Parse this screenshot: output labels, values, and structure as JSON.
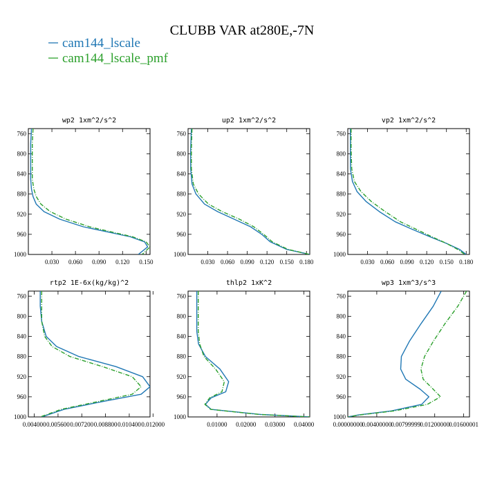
{
  "figure": {
    "title": "CLUBB VAR at280E,-7N"
  },
  "legend": [
    {
      "label": "cam144_lscale",
      "color": "#1f77b4",
      "dash": "solid"
    },
    {
      "label": "cam144_lscale_pmf",
      "color": "#2ca02c",
      "dash": "dashdot"
    }
  ],
  "chart_data": [
    {
      "type": "line",
      "title": "wp2  1xm^2/s^2",
      "xlim": [
        0,
        0.155
      ],
      "ylim": [
        1000,
        750
      ],
      "xticks": [
        0.03,
        0.06,
        0.09,
        0.12,
        0.15
      ],
      "xtick_labels": [
        "0.030",
        "0.060",
        "0.090",
        "0.120",
        "0.150"
      ],
      "yticks": [
        760,
        800,
        840,
        880,
        920,
        960,
        1000
      ],
      "series": [
        {
          "name": "cam144_lscale",
          "color": "#1f77b4",
          "dash": "solid",
          "x": [
            0.004,
            0.003,
            0.003,
            0.003,
            0.004,
            0.006,
            0.01,
            0.02,
            0.04,
            0.07,
            0.1,
            0.13,
            0.148,
            0.152,
            0.14
          ],
          "y": [
            750,
            780,
            820,
            850,
            870,
            885,
            900,
            915,
            930,
            945,
            955,
            965,
            975,
            985,
            1000
          ]
        },
        {
          "name": "cam144_lscale_pmf",
          "color": "#2ca02c",
          "dash": "dashdot",
          "x": [
            0.006,
            0.005,
            0.005,
            0.005,
            0.007,
            0.01,
            0.016,
            0.028,
            0.048,
            0.078,
            0.105,
            0.133,
            0.15,
            0.155,
            0.145
          ],
          "y": [
            750,
            780,
            820,
            850,
            870,
            885,
            900,
            915,
            930,
            945,
            955,
            965,
            975,
            985,
            1000
          ]
        }
      ]
    },
    {
      "type": "line",
      "title": "up2  1xm^2/s^2",
      "xlim": [
        0,
        0.185
      ],
      "ylim": [
        1000,
        750
      ],
      "xticks": [
        0.03,
        0.06,
        0.09,
        0.12,
        0.15,
        0.18
      ],
      "xtick_labels": [
        "0.030",
        "0.060",
        "0.090",
        "0.120",
        "0.150",
        "0.180"
      ],
      "yticks": [
        760,
        800,
        840,
        880,
        920,
        960,
        1000
      ],
      "series": [
        {
          "name": "cam144_lscale",
          "color": "#1f77b4",
          "dash": "solid",
          "x": [
            0.005,
            0.004,
            0.004,
            0.006,
            0.012,
            0.025,
            0.045,
            0.07,
            0.095,
            0.112,
            0.125,
            0.15,
            0.185
          ],
          "y": [
            750,
            790,
            830,
            860,
            880,
            900,
            915,
            930,
            945,
            960,
            975,
            990,
            1000
          ]
        },
        {
          "name": "cam144_lscale_pmf",
          "color": "#2ca02c",
          "dash": "dashdot",
          "x": [
            0.006,
            0.005,
            0.005,
            0.008,
            0.016,
            0.031,
            0.052,
            0.078,
            0.1,
            0.115,
            0.128,
            0.152,
            0.185
          ],
          "y": [
            750,
            790,
            830,
            860,
            880,
            900,
            915,
            930,
            945,
            960,
            975,
            990,
            1000
          ]
        }
      ]
    },
    {
      "type": "line",
      "title": "vp2  1xm^2/s^2",
      "xlim": [
        0,
        0.185
      ],
      "ylim": [
        1000,
        750
      ],
      "xticks": [
        0.03,
        0.06,
        0.09,
        0.12,
        0.15,
        0.18
      ],
      "xtick_labels": [
        "0.030",
        "0.060",
        "0.090",
        "0.120",
        "0.150",
        "0.180"
      ],
      "yticks": [
        760,
        800,
        840,
        880,
        920,
        960,
        1000
      ],
      "series": [
        {
          "name": "cam144_lscale",
          "color": "#1f77b4",
          "dash": "solid",
          "x": [
            0.004,
            0.004,
            0.004,
            0.007,
            0.014,
            0.028,
            0.048,
            0.072,
            0.098,
            0.125,
            0.15,
            0.17,
            0.18
          ],
          "y": [
            750,
            790,
            830,
            855,
            875,
            895,
            915,
            935,
            950,
            965,
            978,
            990,
            1000
          ]
        },
        {
          "name": "cam144_lscale_pmf",
          "color": "#2ca02c",
          "dash": "dashdot",
          "x": [
            0.005,
            0.005,
            0.006,
            0.01,
            0.02,
            0.036,
            0.057,
            0.08,
            0.104,
            0.128,
            0.15,
            0.167,
            0.178
          ],
          "y": [
            750,
            790,
            830,
            855,
            875,
            895,
            915,
            935,
            950,
            965,
            978,
            990,
            1000
          ]
        }
      ]
    },
    {
      "type": "line",
      "title": "rtp2  1E-6x(kg/kg)^2",
      "xlim": [
        0.0036,
        0.0118
      ],
      "ylim": [
        1000,
        750
      ],
      "xticks": [
        0.004,
        0.0056,
        0.0072,
        0.0088,
        0.0104,
        0.012
      ],
      "xtick_labels": [
        "0.004000",
        "0.005600",
        "0.007200",
        "0.008800",
        "0.010400",
        "0.012000"
      ],
      "yticks": [
        760,
        800,
        840,
        880,
        920,
        960,
        1000
      ],
      "series": [
        {
          "name": "cam144_lscale",
          "color": "#1f77b4",
          "dash": "solid",
          "x": [
            0.0044,
            0.0044,
            0.0045,
            0.0048,
            0.0055,
            0.007,
            0.0095,
            0.0113,
            0.0118,
            0.0112,
            0.0085,
            0.006,
            0.0045
          ],
          "y": [
            750,
            780,
            810,
            840,
            860,
            880,
            900,
            920,
            940,
            955,
            970,
            985,
            1000
          ]
        },
        {
          "name": "cam144_lscale_pmf",
          "color": "#2ca02c",
          "dash": "dashdot",
          "x": [
            0.0045,
            0.0045,
            0.0045,
            0.0047,
            0.0052,
            0.0064,
            0.0086,
            0.0106,
            0.0112,
            0.0106,
            0.0082,
            0.0058,
            0.0044
          ],
          "y": [
            750,
            780,
            810,
            840,
            860,
            880,
            900,
            920,
            940,
            955,
            970,
            985,
            1000
          ]
        }
      ]
    },
    {
      "type": "line",
      "title": "thlp2  1xK^2",
      "xlim": [
        0,
        0.042
      ],
      "ylim": [
        1000,
        750
      ],
      "xticks": [
        0.01,
        0.02,
        0.03,
        0.04
      ],
      "xtick_labels": [
        "0.01000",
        "0.02000",
        "0.03000",
        "0.04000"
      ],
      "yticks": [
        760,
        800,
        840,
        880,
        920,
        960,
        1000
      ],
      "series": [
        {
          "name": "cam144_lscale",
          "color": "#1f77b4",
          "dash": "solid",
          "x": [
            0.003,
            0.003,
            0.003,
            0.0036,
            0.006,
            0.011,
            0.014,
            0.013,
            0.008,
            0.006,
            0.008,
            0.025,
            0.042
          ],
          "y": [
            750,
            790,
            830,
            855,
            880,
            905,
            930,
            950,
            962,
            975,
            985,
            995,
            1000
          ]
        },
        {
          "name": "cam144_lscale_pmf",
          "color": "#2ca02c",
          "dash": "dashdot",
          "x": [
            0.0035,
            0.0035,
            0.0035,
            0.004,
            0.0055,
            0.0095,
            0.0125,
            0.0117,
            0.0075,
            0.0058,
            0.0078,
            0.0245,
            0.042
          ],
          "y": [
            750,
            790,
            830,
            855,
            880,
            905,
            930,
            950,
            962,
            975,
            985,
            995,
            1000
          ]
        }
      ]
    },
    {
      "type": "line",
      "title": "wp3  1xm^3/s^3",
      "xlim": [
        0,
        0.0168
      ],
      "ylim": [
        1000,
        750
      ],
      "xticks": [
        0,
        0.004,
        0.008,
        0.012,
        0.016
      ],
      "xtick_labels": [
        "0.00000000",
        "0.00400000",
        "0.00799999",
        "0.01200000",
        "0.01600001"
      ],
      "yticks": [
        760,
        800,
        840,
        880,
        920,
        960,
        1000
      ],
      "series": [
        {
          "name": "cam144_lscale",
          "color": "#1f77b4",
          "dash": "solid",
          "x": [
            0.0129,
            0.0118,
            0.0101,
            0.0085,
            0.0074,
            0.0073,
            0.008,
            0.01,
            0.0112,
            0.0102,
            0.006,
            0.0015,
            0.0
          ],
          "y": [
            750,
            780,
            815,
            850,
            880,
            905,
            925,
            945,
            960,
            975,
            988,
            996,
            1000
          ]
        },
        {
          "name": "cam144_lscale_pmf",
          "color": "#2ca02c",
          "dash": "dashdot",
          "x": [
            0.0164,
            0.0152,
            0.0134,
            0.0118,
            0.0106,
            0.0101,
            0.0104,
            0.0118,
            0.0128,
            0.011,
            0.0064,
            0.0017,
            0.0
          ],
          "y": [
            750,
            780,
            815,
            850,
            880,
            905,
            925,
            945,
            960,
            975,
            988,
            996,
            1000
          ]
        }
      ]
    }
  ]
}
